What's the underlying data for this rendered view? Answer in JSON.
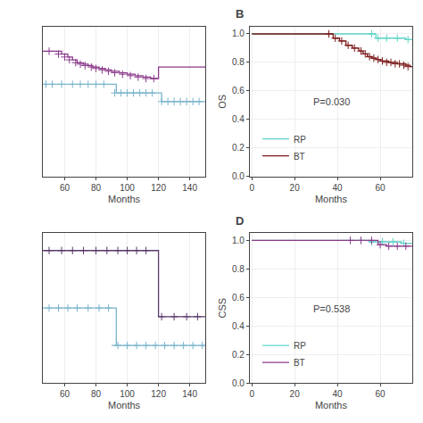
{
  "chart_data": [
    {
      "type": "line",
      "xlabel": "Months",
      "xlim": [
        46,
        150
      ],
      "ylim": [
        0.5,
        1.02
      ],
      "xticks": [
        60,
        80,
        100,
        120,
        140
      ],
      "tick_labels": "x",
      "grid": true,
      "series": [
        {
          "type": "line",
          "line_style": "step",
          "color": "#7ab4cc",
          "x": [
            46,
            90,
            93,
            120,
            122,
            150
          ],
          "values": [
            0.82,
            0.82,
            0.79,
            0.79,
            0.76,
            0.76
          ]
        },
        {
          "type": "line",
          "line_style": "step",
          "color": "#8b3a8b",
          "x": [
            46,
            55,
            58,
            62,
            65,
            68,
            72,
            75,
            78,
            82,
            86,
            90,
            95,
            100,
            105,
            110,
            115,
            120,
            150
          ],
          "values": [
            0.935,
            0.935,
            0.925,
            0.915,
            0.905,
            0.895,
            0.89,
            0.885,
            0.88,
            0.875,
            0.87,
            0.865,
            0.86,
            0.855,
            0.85,
            0.845,
            0.84,
            0.88,
            0.88
          ]
        },
        {
          "type": "scatter",
          "marker": "plus",
          "color": "#7ab4cc",
          "x": [
            48,
            52,
            58,
            65,
            70,
            75,
            80,
            85,
            92,
            96,
            100,
            104,
            108,
            112,
            116,
            122,
            126,
            130,
            134,
            138,
            142,
            146
          ],
          "values": [
            0.82,
            0.82,
            0.82,
            0.82,
            0.82,
            0.82,
            0.82,
            0.82,
            0.79,
            0.79,
            0.79,
            0.79,
            0.79,
            0.79,
            0.79,
            0.76,
            0.76,
            0.76,
            0.76,
            0.76,
            0.76,
            0.76
          ]
        },
        {
          "type": "scatter",
          "marker": "plus",
          "color": "#8b3a8b",
          "x": [
            50,
            56,
            60,
            63,
            67,
            70,
            73,
            77,
            80,
            84,
            88,
            92,
            97,
            102,
            107,
            112,
            117
          ],
          "values": [
            0.935,
            0.925,
            0.915,
            0.905,
            0.895,
            0.89,
            0.885,
            0.88,
            0.875,
            0.87,
            0.865,
            0.86,
            0.855,
            0.85,
            0.845,
            0.84,
            0.84
          ]
        }
      ]
    },
    {
      "type": "line",
      "title": "B",
      "xlabel": "Months",
      "ylabel": "OS",
      "xlim": [
        -1,
        75
      ],
      "ylim": [
        0.0,
        1.05
      ],
      "xticks": [
        0,
        20,
        40,
        60
      ],
      "yticks": [
        {
          "value": 0.0,
          "label": "0.0"
        },
        0.2,
        0.4,
        0.6,
        0.8,
        {
          "value": 1.0,
          "label": "1.0"
        }
      ],
      "grid": true,
      "legend": "lower left",
      "annotations": [
        {
          "text": "P=0.030"
        }
      ],
      "series": [
        {
          "type": "line",
          "line_style": "step",
          "name": "RP",
          "color": "#5fd4c8",
          "x": [
            0,
            55,
            58,
            62,
            67,
            72,
            75
          ],
          "values": [
            1.0,
            1.0,
            0.97,
            0.97,
            0.97,
            0.96,
            0.96
          ]
        },
        {
          "type": "line",
          "line_style": "step",
          "name": "BT",
          "color": "#7b1a1a",
          "x": [
            0,
            35,
            38,
            41,
            44,
            47,
            50,
            52,
            54,
            56,
            58,
            60,
            62,
            64,
            66,
            68,
            70,
            72,
            74,
            75
          ],
          "values": [
            1.0,
            1.0,
            0.97,
            0.95,
            0.92,
            0.9,
            0.88,
            0.86,
            0.84,
            0.83,
            0.82,
            0.81,
            0.81,
            0.8,
            0.8,
            0.79,
            0.79,
            0.78,
            0.77,
            0.77
          ]
        },
        {
          "type": "scatter",
          "marker": "plus",
          "color": "#5fd4c8",
          "x": [
            56,
            59,
            63,
            68,
            73
          ],
          "values": [
            1.0,
            0.97,
            0.97,
            0.97,
            0.96
          ]
        },
        {
          "type": "scatter",
          "marker": "plus",
          "color": "#7b1a1a",
          "x": [
            36,
            39,
            42,
            45,
            48,
            51,
            53,
            55,
            57,
            59,
            61,
            63,
            65,
            67,
            69,
            71,
            73
          ],
          "values": [
            1.0,
            0.97,
            0.95,
            0.92,
            0.9,
            0.88,
            0.86,
            0.84,
            0.83,
            0.82,
            0.81,
            0.8,
            0.8,
            0.79,
            0.79,
            0.78,
            0.77
          ]
        }
      ]
    },
    {
      "type": "line",
      "xlabel": "Months",
      "xlim": [
        46,
        150
      ],
      "ylim": [
        0.5,
        1.02
      ],
      "xticks": [
        60,
        80,
        100,
        120,
        140
      ],
      "tick_labels": "x",
      "grid": true,
      "series": [
        {
          "type": "line",
          "line_style": "step",
          "color": "#7ab4cc",
          "x": [
            46,
            90,
            93,
            90,
            93,
            150
          ],
          "values": [
            0.76,
            0.76,
            0.63,
            0.63,
            0.63,
            0.63
          ]
        },
        {
          "type": "line",
          "line_style": "step",
          "color": "#5a3a6a",
          "x": [
            46,
            118,
            120,
            150
          ],
          "values": [
            0.96,
            0.96,
            0.73,
            0.73
          ]
        },
        {
          "type": "scatter",
          "marker": "plus",
          "color": "#7ab4cc",
          "x": [
            50,
            56,
            62,
            68,
            75,
            82,
            88
          ],
          "values": [
            0.76,
            0.76,
            0.76,
            0.76,
            0.76,
            0.76,
            0.76
          ]
        },
        {
          "type": "scatter",
          "marker": "plus",
          "color": "#5a3a6a",
          "x": [
            50,
            58,
            65,
            72,
            80,
            87,
            94,
            100,
            106,
            112
          ],
          "values": [
            0.96,
            0.96,
            0.96,
            0.96,
            0.96,
            0.96,
            0.96,
            0.96,
            0.96,
            0.96
          ]
        },
        {
          "type": "scatter",
          "marker": "plus",
          "color": "#7ab4cc",
          "x": [
            94,
            100,
            106,
            112,
            118,
            124,
            130,
            136,
            142,
            148
          ],
          "values": [
            0.63,
            0.63,
            0.63,
            0.63,
            0.63,
            0.63,
            0.63,
            0.63,
            0.63,
            0.63
          ]
        },
        {
          "type": "scatter",
          "marker": "plus",
          "color": "#5a3a6a",
          "x": [
            122,
            130,
            138,
            145
          ],
          "values": [
            0.73,
            0.73,
            0.73,
            0.73
          ]
        }
      ]
    },
    {
      "type": "line",
      "title": "D",
      "xlabel": "Months",
      "ylabel": "CSS",
      "xlim": [
        -1,
        75
      ],
      "ylim": [
        0.0,
        1.05
      ],
      "xticks": [
        0,
        20,
        40,
        60
      ],
      "yticks": [
        {
          "value": 0.0,
          "label": "0.0"
        },
        0.2,
        0.4,
        0.6,
        0.8,
        {
          "value": 1.0,
          "label": "1.0"
        }
      ],
      "grid": true,
      "legend": "lower left",
      "annotations": [
        {
          "text": "P=0.538"
        }
      ],
      "series": [
        {
          "type": "line",
          "line_style": "step",
          "name": "RP",
          "color": "#5fd4c8",
          "x": [
            0,
            50,
            55,
            60,
            65,
            70,
            75
          ],
          "values": [
            1.0,
            1.0,
            0.99,
            0.99,
            0.99,
            0.98,
            0.98
          ]
        },
        {
          "type": "line",
          "line_style": "step",
          "name": "BT",
          "color": "#8b3a8b",
          "x": [
            0,
            45,
            50,
            55,
            59,
            63,
            75
          ],
          "values": [
            1.0,
            1.0,
            1.0,
            1.0,
            0.97,
            0.96,
            0.96
          ]
        },
        {
          "type": "scatter",
          "marker": "plus",
          "color": "#5fd4c8",
          "x": [
            51,
            56,
            61,
            66,
            71
          ],
          "values": [
            1.0,
            0.99,
            0.99,
            0.99,
            0.98
          ]
        },
        {
          "type": "scatter",
          "marker": "plus",
          "color": "#8b3a8b",
          "x": [
            46,
            51,
            56,
            60,
            64,
            68,
            72
          ],
          "values": [
            1.0,
            1.0,
            1.0,
            0.97,
            0.96,
            0.96,
            0.96
          ]
        }
      ]
    }
  ]
}
